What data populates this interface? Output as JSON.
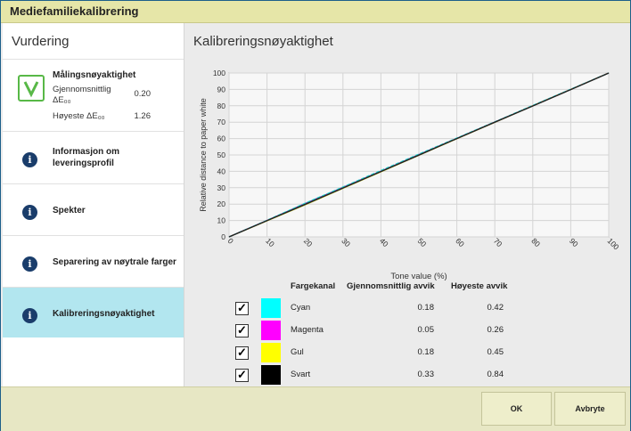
{
  "window": {
    "title": "Mediefamiliekalibrering"
  },
  "sidebar": {
    "title": "Vurdering",
    "measurement": {
      "label": "Målingsnøyaktighet",
      "avg_label_line1": "Gjennomsnittlig",
      "avg_label_line2": "ΔE₀₀",
      "avg_value": "0.20",
      "max_label": "Høyeste ΔE₀₀",
      "max_value": "1.26"
    },
    "items": [
      {
        "label_line1": "Informasjon om",
        "label_line2": "leveringsprofil"
      },
      {
        "label_line1": "Spekter",
        "label_line2": ""
      },
      {
        "label_line1": "Separering av nøytrale farger",
        "label_line2": ""
      },
      {
        "label_line1": "Kalibreringsnøyaktighet",
        "label_line2": ""
      }
    ]
  },
  "main": {
    "title": "Kalibreringsnøyaktighet",
    "table": {
      "headers": {
        "channel": "Fargekanal",
        "avg": "Gjennomsnittlig avvik",
        "max": "Høyeste avvik"
      },
      "rows": [
        {
          "name": "Cyan",
          "avg": "0.18",
          "max": "0.42",
          "color": "#00ffff",
          "checked": true
        },
        {
          "name": "Magenta",
          "avg": "0.05",
          "max": "0.26",
          "color": "#ff00ff",
          "checked": true
        },
        {
          "name": "Gul",
          "avg": "0.18",
          "max": "0.45",
          "color": "#ffff00",
          "checked": true
        },
        {
          "name": "Svart",
          "avg": "0.33",
          "max": "0.84",
          "color": "#000000",
          "checked": true
        }
      ]
    }
  },
  "chart_data": {
    "type": "line",
    "title": "",
    "xlabel": "Tone value (%)",
    "ylabel": "Relative distance to paper white",
    "xlim": [
      0,
      100
    ],
    "ylim": [
      0,
      100
    ],
    "grid": true,
    "x_ticks": [
      "0",
      "10",
      "20",
      "30",
      "40",
      "50",
      "60",
      "70",
      "80",
      "90",
      "100"
    ],
    "y_ticks": [
      "0",
      "10",
      "20",
      "30",
      "40",
      "50",
      "60",
      "70",
      "80",
      "90",
      "100"
    ],
    "x": [
      0,
      10,
      20,
      30,
      40,
      50,
      60,
      70,
      80,
      90,
      100
    ],
    "series": [
      {
        "color": "#4444cc",
        "values": [
          0,
          10,
          20.3,
          30.2,
          40.1,
          50.2,
          60.1,
          70,
          80,
          90,
          100
        ]
      },
      {
        "color": "#cc44cc",
        "values": [
          0,
          10,
          20,
          30,
          40,
          50,
          60,
          70,
          80,
          90,
          100
        ]
      },
      {
        "color": "#cccc33",
        "values": [
          0,
          9.8,
          19.5,
          29.6,
          39.7,
          49.8,
          59.9,
          69.9,
          80,
          90,
          100
        ]
      },
      {
        "color": "#22cccc",
        "values": [
          0,
          10.1,
          20.5,
          30.4,
          40.5,
          50.5,
          60.3,
          70.2,
          80.2,
          90.1,
          100
        ]
      },
      {
        "color": "#222222",
        "values": [
          0,
          9.9,
          19.8,
          29.8,
          39.9,
          49.9,
          60,
          70,
          79.9,
          89.9,
          100
        ]
      }
    ]
  },
  "footer": {
    "ok_label": "OK",
    "cancel_label": "Avbryte"
  }
}
